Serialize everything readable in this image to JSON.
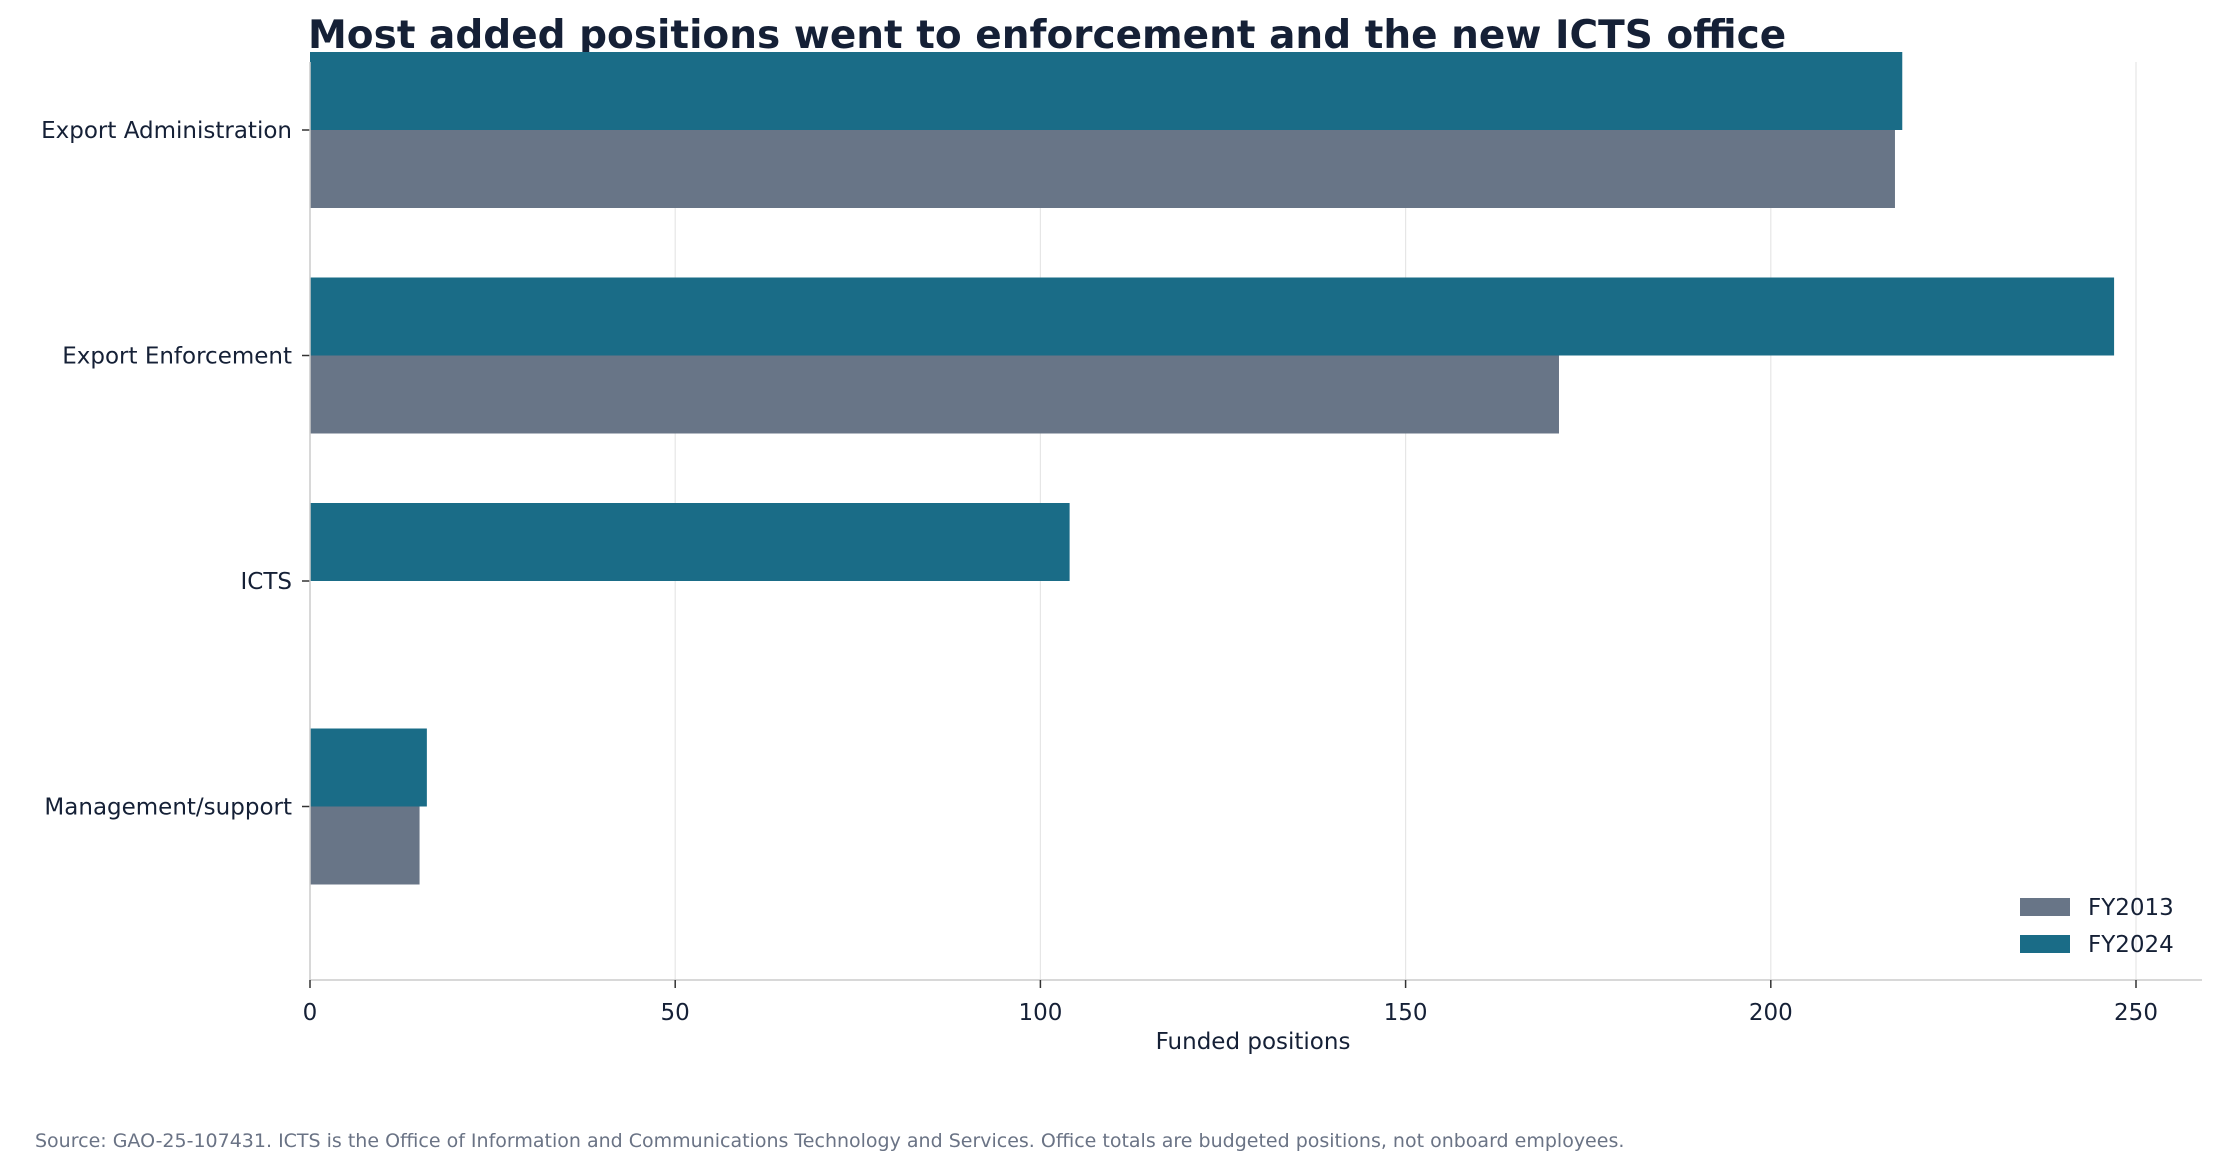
{
  "chart_data": {
    "type": "bar",
    "orientation": "horizontal",
    "title": "Most added positions went to enforcement and the new ICTS office",
    "xlabel": "Funded positions",
    "ylabel": "",
    "categories": [
      "Export Administration",
      "Export Enforcement",
      "ICTS",
      "Management/support"
    ],
    "series": [
      {
        "name": "FY2013",
        "color": "#687587",
        "values": [
          217,
          171,
          0,
          15
        ]
      },
      {
        "name": "FY2024",
        "color": "#1a6c87",
        "values": [
          218,
          247,
          104,
          16
        ]
      }
    ],
    "xlim": [
      0,
      260
    ],
    "xticks": [
      0,
      50,
      100,
      150,
      200,
      250
    ],
    "xtick_labels": [
      "0",
      "50",
      "100",
      "150",
      "200",
      "250"
    ],
    "grid": "vertical",
    "legend_position": "bottom-right",
    "source": "Source: GAO-25-107431. ICTS is the Office of Information and Communications Technology and Services. Office totals are budgeted positions, not onboard employees."
  },
  "colors": {
    "title": "#152036",
    "text": "#152036",
    "grid": "#e6e6e6",
    "axis": "#cccccc",
    "source": "#6a7385"
  }
}
